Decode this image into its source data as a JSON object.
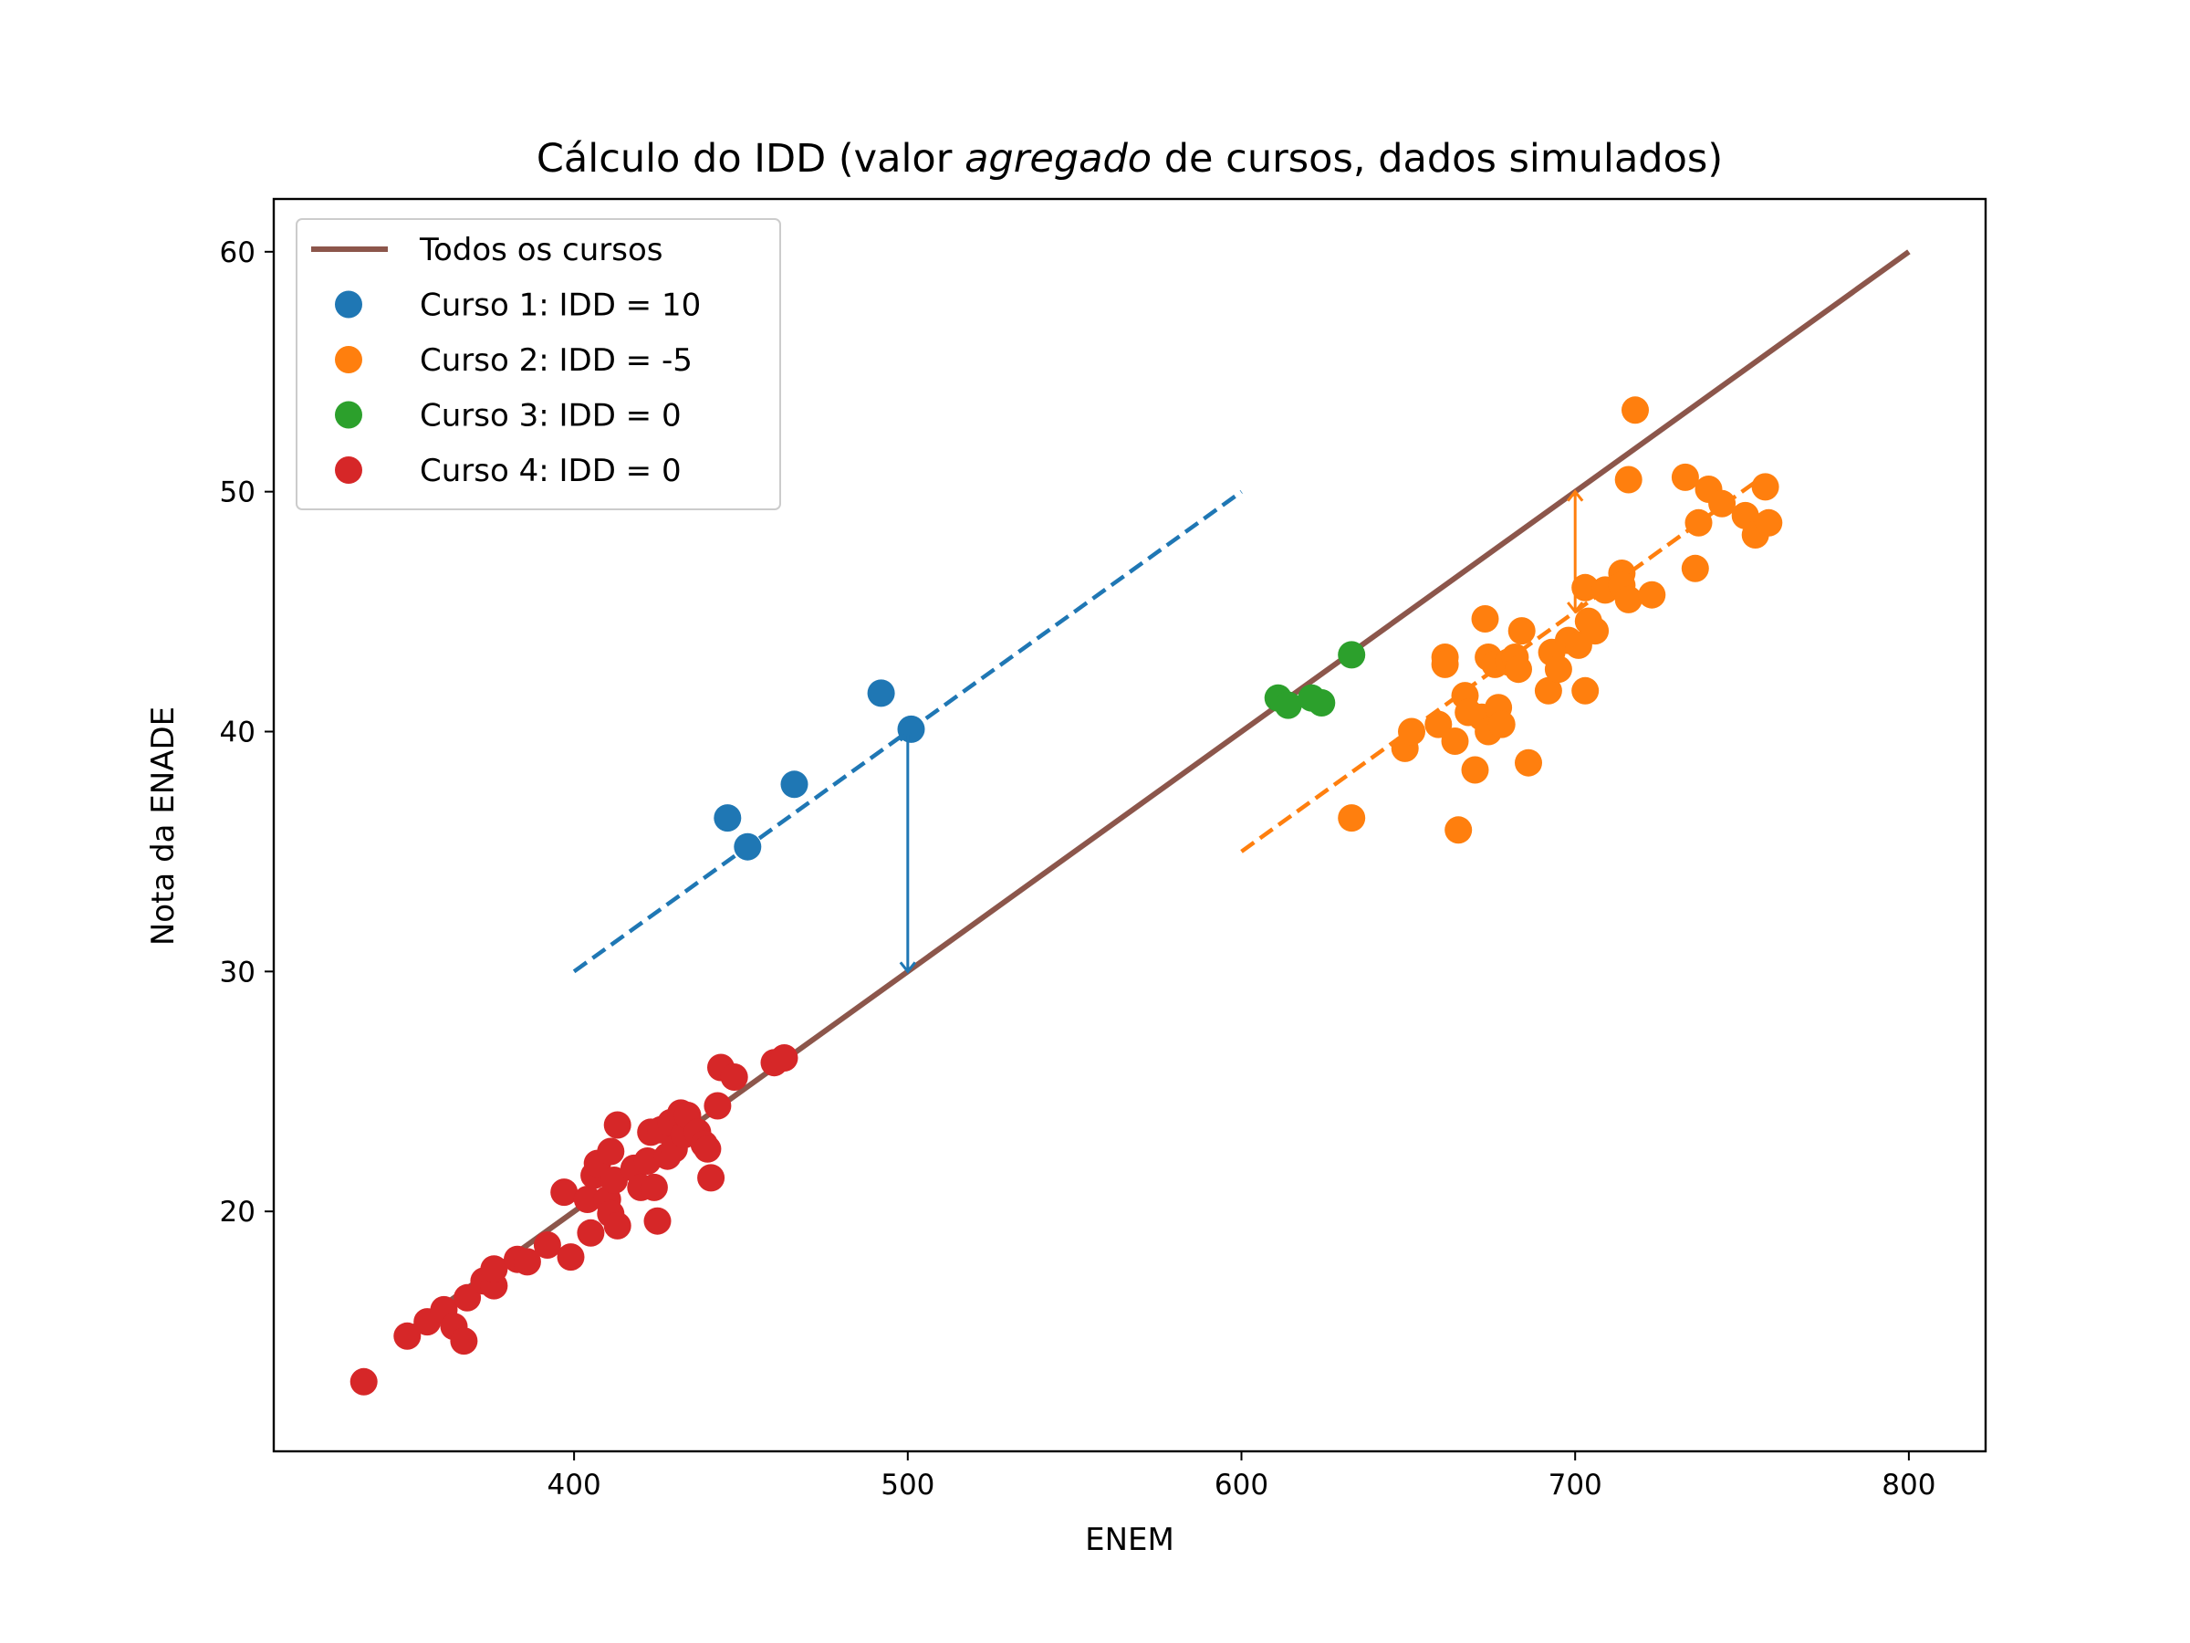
{
  "chart_data": {
    "type": "scatter",
    "title": {
      "before": "Cálculo do IDD (valor ",
      "italic": "agregado",
      "after": " de cursos, dados simulados)"
    },
    "xlabel": "ENEM",
    "ylabel": "Nota da ENADE",
    "xlim": [
      310,
      823
    ],
    "ylim": [
      10,
      62.2
    ],
    "xticks": [
      400,
      500,
      600,
      700,
      800
    ],
    "yticks": [
      20,
      30,
      40,
      50,
      60
    ],
    "grid": false,
    "legend_position": "top-left",
    "lines": [
      {
        "name": "Todos os cursos",
        "color": "#8c564b",
        "style": "solid",
        "points": [
          [
            350,
            15
          ],
          [
            800,
            60
          ]
        ]
      },
      {
        "color": "#1f77b4",
        "style": "dashed",
        "points": [
          [
            400,
            30
          ],
          [
            600,
            50
          ]
        ]
      },
      {
        "color": "#ff7f0e",
        "style": "dashed",
        "points": [
          [
            600,
            35
          ],
          [
            755,
            50.5
          ]
        ]
      }
    ],
    "arrows": [
      {
        "color": "#1f77b4",
        "x": 500,
        "y_from": 30,
        "y_to": 40
      },
      {
        "color": "#ff7f0e",
        "x": 700,
        "y_from": 45,
        "y_to": 50
      }
    ],
    "series": [
      {
        "name": "Curso 1: IDD = 10",
        "color": "#1f77b4",
        "points": [
          [
            446,
            36.4
          ],
          [
            452,
            35.2
          ],
          [
            466,
            37.8
          ],
          [
            492,
            41.6
          ],
          [
            501,
            40.1
          ]
        ]
      },
      {
        "name": "Curso 2: IDD = -5",
        "color": "#ff7f0e",
        "points": [
          [
            633,
            36.4
          ],
          [
            649,
            39.3
          ],
          [
            651,
            40.0
          ],
          [
            659,
            40.3
          ],
          [
            661,
            43.1
          ],
          [
            661,
            42.8
          ],
          [
            664,
            39.6
          ],
          [
            665,
            35.9
          ],
          [
            667,
            41.5
          ],
          [
            668,
            40.8
          ],
          [
            670,
            38.4
          ],
          [
            672,
            40.6
          ],
          [
            673,
            44.7
          ],
          [
            674,
            43.1
          ],
          [
            674,
            40.0
          ],
          [
            676,
            42.8
          ],
          [
            677,
            41.0
          ],
          [
            678,
            40.3
          ],
          [
            680,
            42.9
          ],
          [
            682,
            43.1
          ],
          [
            683,
            42.6
          ],
          [
            684,
            44.2
          ],
          [
            686,
            38.7
          ],
          [
            692,
            41.7
          ],
          [
            693,
            43.3
          ],
          [
            695,
            42.6
          ],
          [
            698,
            43.8
          ],
          [
            701,
            43.6
          ],
          [
            703,
            46.0
          ],
          [
            703,
            41.7
          ],
          [
            704,
            44.6
          ],
          [
            706,
            44.2
          ],
          [
            709,
            45.9
          ],
          [
            714,
            46.6
          ],
          [
            714,
            46.1
          ],
          [
            716,
            45.5
          ],
          [
            716,
            50.5
          ],
          [
            718,
            53.4
          ],
          [
            723,
            45.7
          ],
          [
            733,
            50.6
          ],
          [
            736,
            46.8
          ],
          [
            737,
            48.7
          ],
          [
            740,
            50.1
          ],
          [
            744,
            49.5
          ],
          [
            751,
            49.0
          ],
          [
            754,
            48.2
          ],
          [
            757,
            50.2
          ],
          [
            758,
            48.7
          ]
        ]
      },
      {
        "name": "Curso 3: IDD = 0",
        "color": "#2ca02c",
        "points": [
          [
            611,
            41.4
          ],
          [
            614,
            41.1
          ],
          [
            621,
            41.4
          ],
          [
            624,
            41.2
          ],
          [
            633,
            43.2
          ]
        ]
      },
      {
        "name": "Curso 4: IDD = 0",
        "color": "#d62728",
        "points": [
          [
            337,
            12.9
          ],
          [
            350,
            14.8
          ],
          [
            356,
            15.4
          ],
          [
            361,
            15.9
          ],
          [
            364,
            15.2
          ],
          [
            367,
            14.6
          ],
          [
            368,
            16.4
          ],
          [
            373,
            17.1
          ],
          [
            376,
            16.9
          ],
          [
            376,
            17.6
          ],
          [
            383,
            18.0
          ],
          [
            386,
            17.9
          ],
          [
            392,
            18.6
          ],
          [
            397,
            20.8
          ],
          [
            399,
            18.1
          ],
          [
            404,
            20.5
          ],
          [
            405,
            19.1
          ],
          [
            406,
            21.5
          ],
          [
            407,
            22.0
          ],
          [
            410,
            20.5
          ],
          [
            411,
            22.5
          ],
          [
            411,
            19.9
          ],
          [
            412,
            21.3
          ],
          [
            413,
            19.4
          ],
          [
            413,
            23.6
          ],
          [
            418,
            21.8
          ],
          [
            420,
            21.0
          ],
          [
            422,
            22.1
          ],
          [
            423,
            23.3
          ],
          [
            424,
            21.0
          ],
          [
            425,
            19.6
          ],
          [
            426,
            23.4
          ],
          [
            428,
            22.3
          ],
          [
            429,
            23.7
          ],
          [
            430,
            22.6
          ],
          [
            432,
            24.1
          ],
          [
            433,
            23.2
          ],
          [
            434,
            24.0
          ],
          [
            437,
            23.3
          ],
          [
            439,
            22.8
          ],
          [
            440,
            22.6
          ],
          [
            441,
            21.4
          ],
          [
            443,
            24.4
          ],
          [
            444,
            26.0
          ],
          [
            448,
            25.6
          ],
          [
            460,
            26.2
          ],
          [
            463,
            26.4
          ]
        ]
      }
    ],
    "legend_entries": [
      {
        "label": "Todos os cursos",
        "kind": "line",
        "color": "#8c564b"
      },
      {
        "label": "Curso 1: IDD = 10",
        "kind": "marker",
        "color": "#1f77b4"
      },
      {
        "label": "Curso 2: IDD = -5",
        "kind": "marker",
        "color": "#ff7f0e"
      },
      {
        "label": "Curso 3: IDD = 0",
        "kind": "marker",
        "color": "#2ca02c"
      },
      {
        "label": "Curso 4: IDD = 0",
        "kind": "marker",
        "color": "#d62728"
      }
    ]
  }
}
